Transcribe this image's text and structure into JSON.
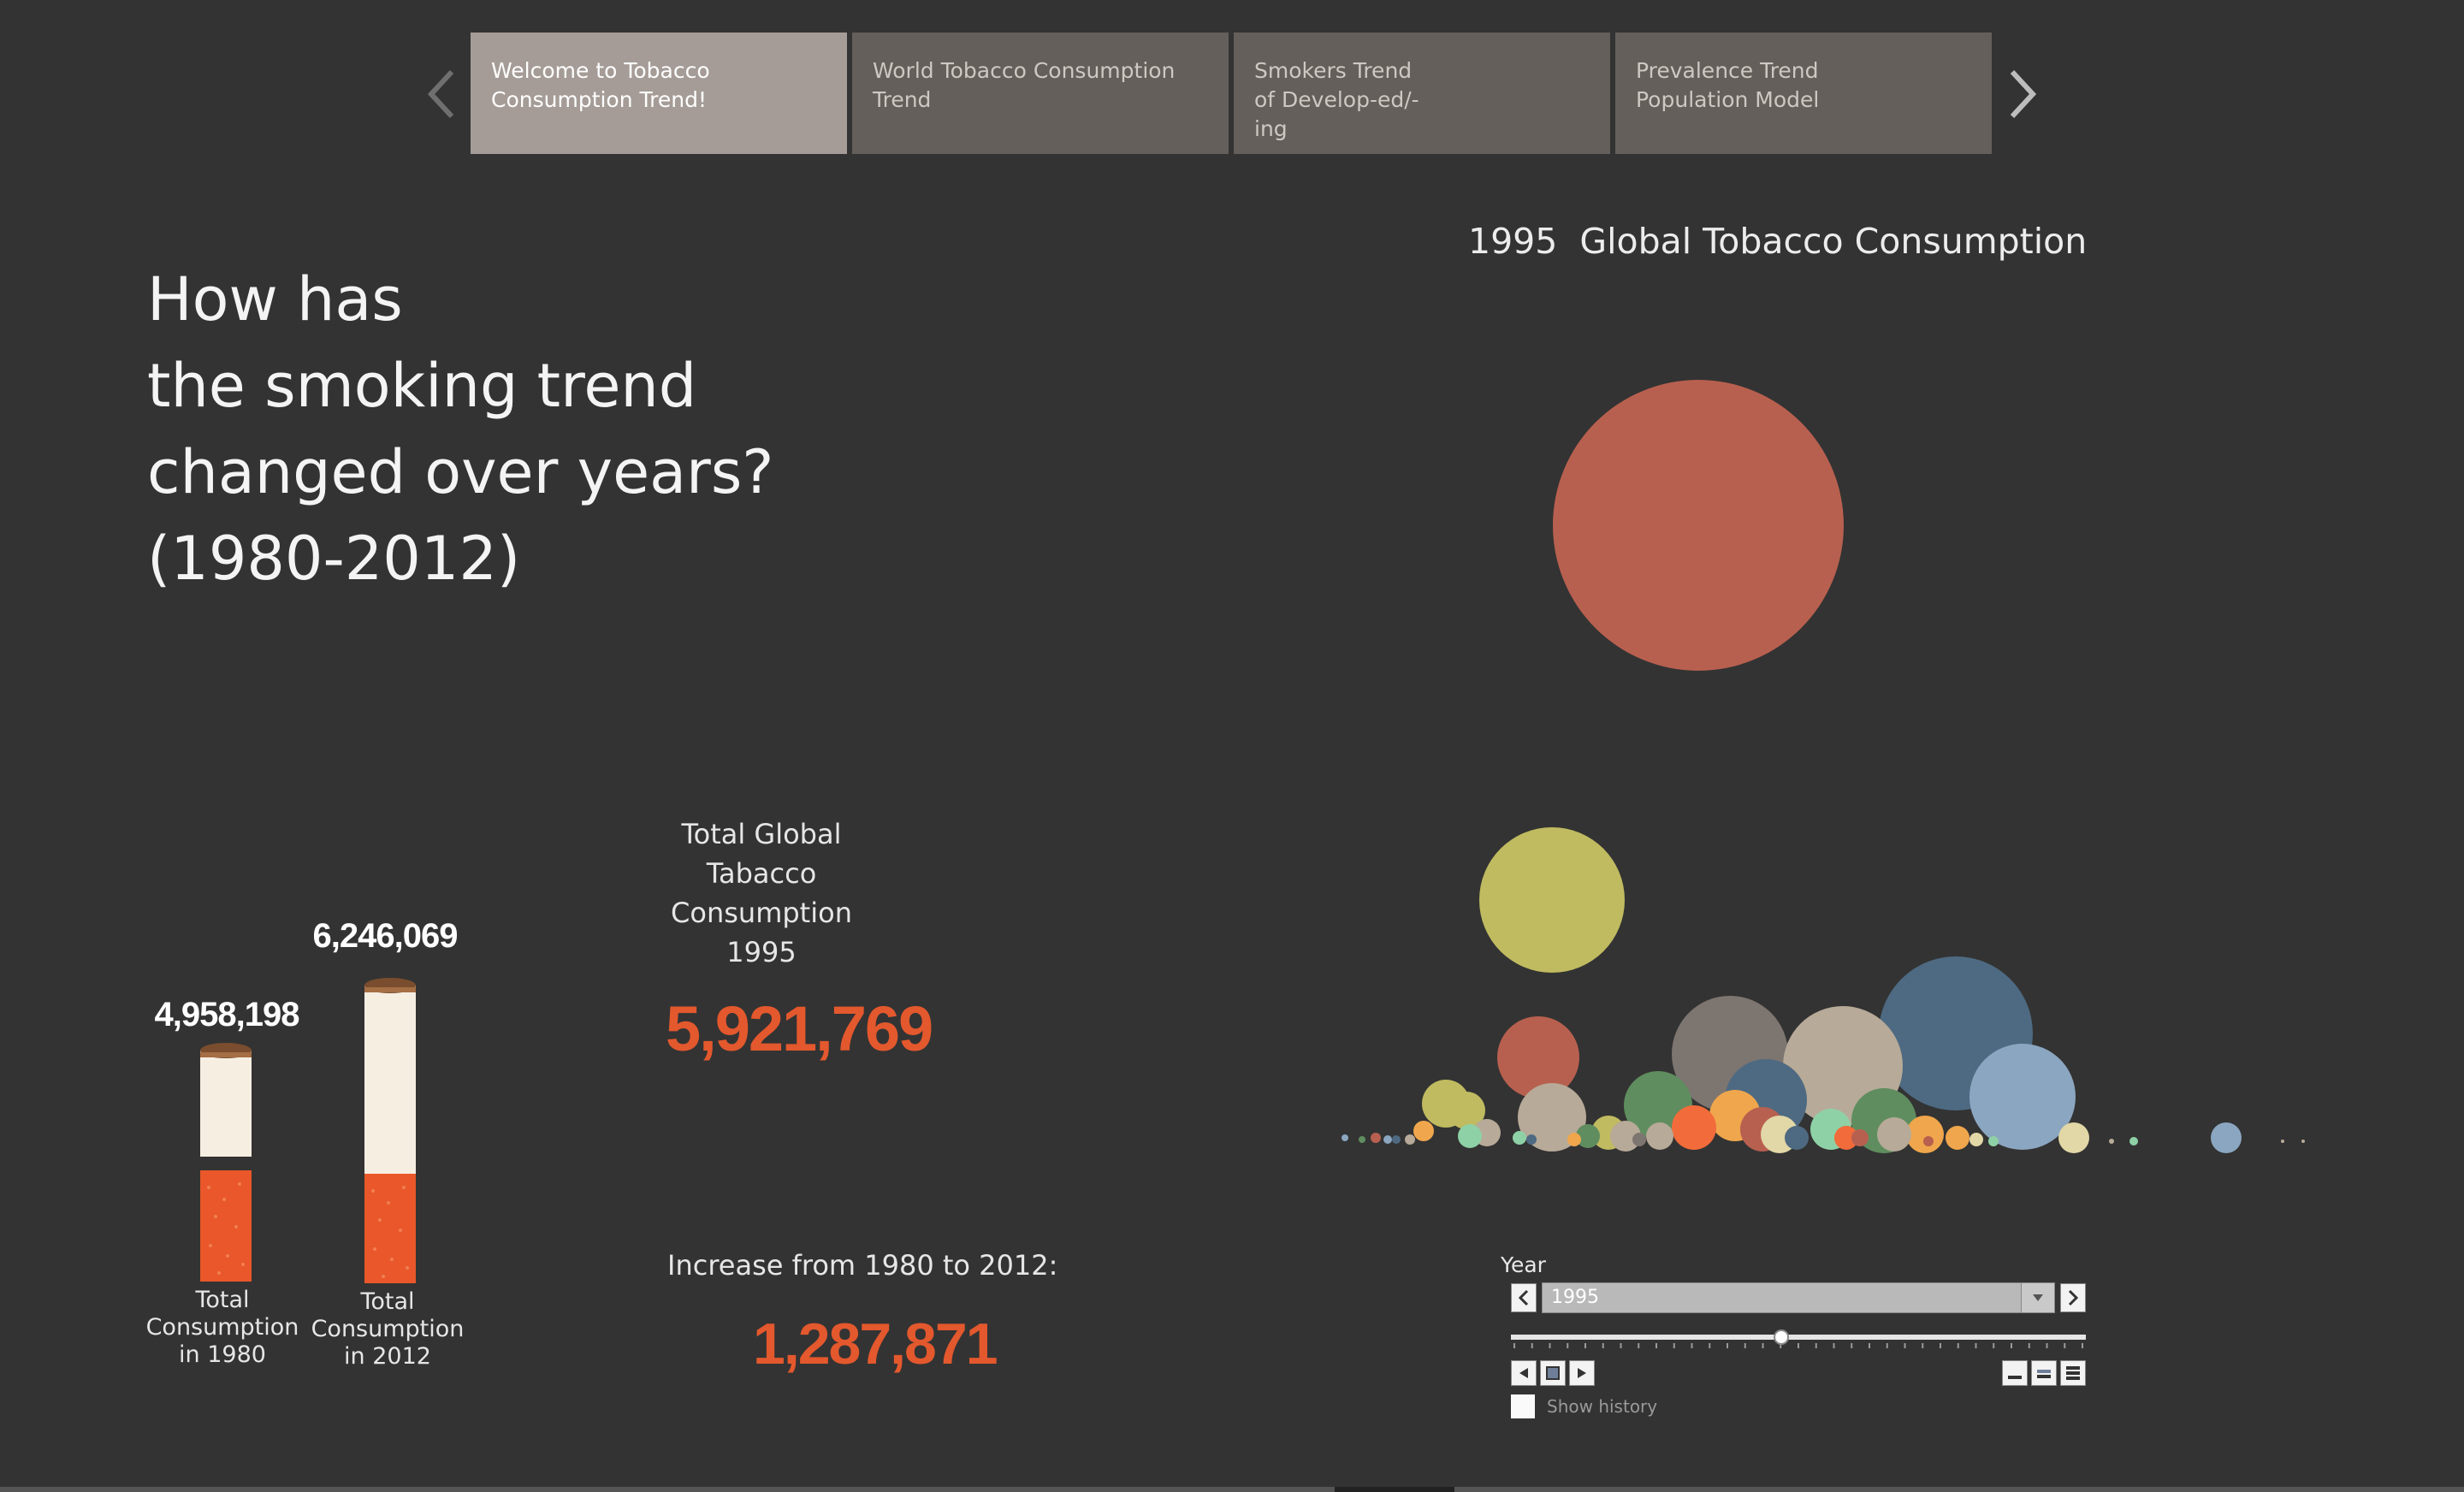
{
  "tabs": [
    {
      "label": "Welcome to Tobacco  Consumption Trend!",
      "active": true
    },
    {
      "label": "World Tobacco Consumption Trend",
      "active": false
    },
    {
      "label": "Smokers Trend of Develop-ed/-ing",
      "active": false
    },
    {
      "label": "Prevalence Trend Population Model",
      "active": false
    }
  ],
  "nav": {
    "prev_icon": "chevron-left-icon",
    "next_icon": "chevron-right-icon"
  },
  "title": {
    "line1": "How has",
    "line2": "the smoking trend",
    "line3": "changed over years?",
    "line4": "(1980-2012)"
  },
  "chart": {
    "year": "1995",
    "title": "Global Tobacco Consumption"
  },
  "cigarettes": [
    {
      "value": "4,958,198",
      "label1": "Total",
      "label2": "Consumption",
      "label3": "in 1980",
      "filter_fill": 0.38
    },
    {
      "value": "6,246,069",
      "label1": "Total",
      "label2": "Consumption",
      "label3": "in 2012",
      "filter_fill": 0.36
    }
  ],
  "kpi": {
    "label1": "Total Global",
    "label2": "Tabacco",
    "label3": "Consumption",
    "label4": "1995",
    "value": "5,921,769",
    "increase_label": "Increase from 1980 to 2012:",
    "increase_value": "1,287,871"
  },
  "year_control": {
    "label": "Year",
    "value": "1995",
    "show_history": "Show history",
    "slider_fraction": 0.47
  },
  "colors": {
    "background": "#333333",
    "accent": "#e3582d",
    "tab_active": "#a59c97",
    "tab_inactive": "#645f5b"
  }
}
